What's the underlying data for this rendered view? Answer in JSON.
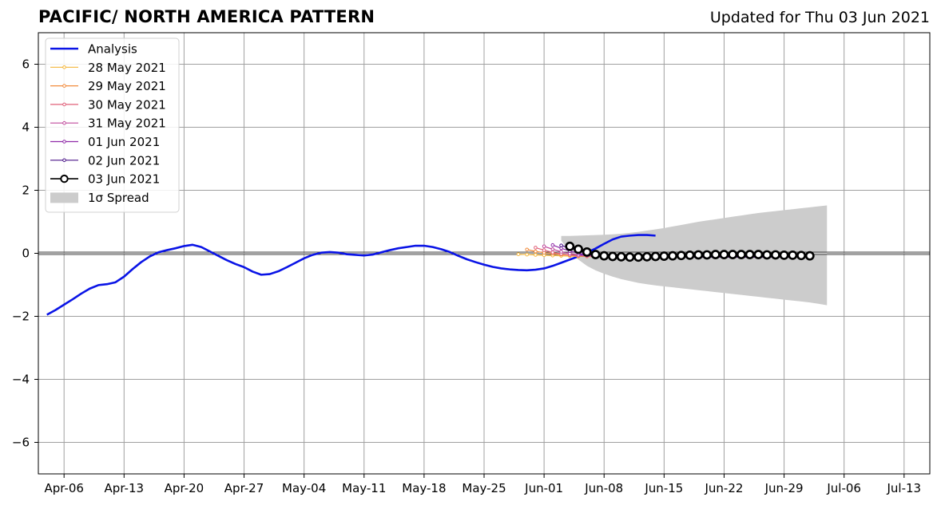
{
  "title": "PACIFIC/ NORTH AMERICA PATTERN",
  "subtitle": "Updated for Thu 03 Jun 2021",
  "colors": {
    "analysis": "#0a14e6",
    "spread": "#cccccc",
    "ensemble": [
      "#f5b63a",
      "#f28b3c",
      "#e0607a",
      "#c04a9c",
      "#8f2aa8",
      "#4a1488",
      "#000000"
    ]
  },
  "chart_data": {
    "type": "line",
    "title": "PACIFIC/ NORTH AMERICA PATTERN",
    "xlabel": "",
    "ylabel": "",
    "ylim": [
      -7,
      7
    ],
    "xlim": [
      "2021-04-03",
      "2021-07-16"
    ],
    "grid": true,
    "legend_position": "top-left",
    "yticks": [
      -6,
      -4,
      -2,
      0,
      2,
      4,
      6
    ],
    "ytick_labels": [
      "−6",
      "−4",
      "−2",
      "0",
      "2",
      "4",
      "6"
    ],
    "xticks": [
      "2021-04-06",
      "2021-04-13",
      "2021-04-20",
      "2021-04-27",
      "2021-05-04",
      "2021-05-11",
      "2021-05-18",
      "2021-05-25",
      "2021-06-01",
      "2021-06-08",
      "2021-06-15",
      "2021-06-22",
      "2021-06-29",
      "2021-07-06",
      "2021-07-13"
    ],
    "xtick_labels": [
      "Apr-06",
      "Apr-13",
      "Apr-20",
      "Apr-27",
      "May-04",
      "May-11",
      "May-18",
      "May-25",
      "Jun-01",
      "Jun-08",
      "Jun-15",
      "Jun-22",
      "Jun-29",
      "Jul-06",
      "Jul-13"
    ],
    "legend": [
      "Analysis",
      "28 May 2021",
      "29 May 2021",
      "30 May 2021",
      "31 May 2021",
      "01 Jun 2021",
      "02 Jun 2021",
      "03 Jun 2021",
      "1σ Spread"
    ],
    "analysis": {
      "name": "Analysis",
      "start": "2021-04-04",
      "values": [
        -1.95,
        -1.8,
        -1.63,
        -1.46,
        -1.28,
        -1.12,
        -1.01,
        -0.98,
        -0.92,
        -0.74,
        -0.5,
        -0.28,
        -0.1,
        0.03,
        0.1,
        0.16,
        0.23,
        0.27,
        0.2,
        0.06,
        -0.08,
        -0.22,
        -0.34,
        -0.44,
        -0.58,
        -0.68,
        -0.66,
        -0.57,
        -0.44,
        -0.3,
        -0.16,
        -0.05,
        0.02,
        0.04,
        0.02,
        -0.03,
        -0.05,
        -0.07,
        -0.04,
        0.03,
        0.1,
        0.16,
        0.2,
        0.24,
        0.24,
        0.2,
        0.13,
        0.04,
        -0.08,
        -0.19,
        -0.28,
        -0.36,
        -0.43,
        -0.48,
        -0.51,
        -0.53,
        -0.54,
        -0.52,
        -0.48,
        -0.4,
        -0.3,
        -0.2,
        -0.1,
        0.02,
        0.15,
        0.3,
        0.44,
        0.53,
        0.56,
        0.58,
        0.58,
        0.56
      ]
    },
    "forecasts": [
      {
        "name": "28 May 2021",
        "start": "2021-05-29",
        "values": [
          -0.03,
          -0.04,
          -0.05,
          -0.06,
          -0.07,
          -0.08,
          -0.09,
          -0.1,
          -0.1,
          -0.11,
          -0.11,
          -0.11,
          -0.12,
          -0.12,
          -0.12,
          -0.12,
          -0.12,
          -0.12,
          -0.12,
          -0.12,
          -0.12,
          -0.12,
          -0.12,
          -0.12,
          -0.12,
          -0.12,
          -0.12,
          -0.12,
          -0.12
        ]
      },
      {
        "name": "29 May 2021",
        "start": "2021-05-30",
        "values": [
          0.12,
          0.06,
          0.02,
          -0.01,
          -0.04,
          -0.06,
          -0.08,
          -0.09,
          -0.1,
          -0.11,
          -0.11,
          -0.11,
          -0.12,
          -0.12,
          -0.12,
          -0.12,
          -0.12,
          -0.12,
          -0.12,
          -0.12,
          -0.12,
          -0.12,
          -0.12,
          -0.12,
          -0.12,
          -0.12,
          -0.12,
          -0.12,
          -0.12
        ]
      },
      {
        "name": "30 May 2021",
        "start": "2021-05-31",
        "values": [
          0.18,
          0.1,
          0.03,
          -0.02,
          -0.05,
          -0.08,
          -0.09,
          -0.1,
          -0.11,
          -0.11,
          -0.12,
          -0.12,
          -0.12,
          -0.12,
          -0.12,
          -0.12,
          -0.12,
          -0.12,
          -0.12,
          -0.12,
          -0.12,
          -0.12,
          -0.12,
          -0.12,
          -0.12,
          -0.12,
          -0.12,
          -0.12,
          -0.12
        ]
      },
      {
        "name": "31 May 2021",
        "start": "2021-06-01",
        "values": [
          0.22,
          0.13,
          0.05,
          -0.01,
          -0.05,
          -0.08,
          -0.1,
          -0.11,
          -0.11,
          -0.12,
          -0.12,
          -0.12,
          -0.12,
          -0.12,
          -0.12,
          -0.12,
          -0.12,
          -0.12,
          -0.12,
          -0.12,
          -0.12,
          -0.12,
          -0.12,
          -0.12,
          -0.12,
          -0.12,
          -0.12,
          -0.12,
          -0.12
        ]
      },
      {
        "name": "01 Jun 2021",
        "start": "2021-06-02",
        "values": [
          0.26,
          0.16,
          0.07,
          0.0,
          -0.05,
          -0.08,
          -0.1,
          -0.11,
          -0.12,
          -0.12,
          -0.12,
          -0.12,
          -0.12,
          -0.12,
          -0.12,
          -0.12,
          -0.12,
          -0.12,
          -0.12,
          -0.12,
          -0.12,
          -0.12,
          -0.12,
          -0.12,
          -0.12,
          -0.12,
          -0.12,
          -0.12,
          -0.12
        ]
      },
      {
        "name": "02 Jun 2021",
        "start": "2021-06-03",
        "values": [
          0.25,
          0.17,
          0.08,
          0.01,
          -0.04,
          -0.08,
          -0.1,
          -0.11,
          -0.12,
          -0.12,
          -0.12,
          -0.12,
          -0.12,
          -0.12,
          -0.12,
          -0.12,
          -0.12,
          -0.12,
          -0.12,
          -0.12,
          -0.12,
          -0.12,
          -0.12,
          -0.12,
          -0.12,
          -0.12,
          -0.12,
          -0.12,
          -0.12
        ]
      },
      {
        "name": "03 Jun 2021",
        "start": "2021-06-04",
        "values": [
          0.22,
          0.13,
          0.04,
          -0.04,
          -0.08,
          -0.1,
          -0.11,
          -0.12,
          -0.12,
          -0.11,
          -0.1,
          -0.09,
          -0.08,
          -0.07,
          -0.06,
          -0.05,
          -0.05,
          -0.04,
          -0.04,
          -0.04,
          -0.04,
          -0.04,
          -0.04,
          -0.05,
          -0.05,
          -0.06,
          -0.06,
          -0.07,
          -0.08
        ]
      }
    ],
    "spread": {
      "name": "1σ Spread",
      "start": "2021-06-03",
      "upper": [
        0.55,
        0.55,
        0.56,
        0.57,
        0.58,
        0.59,
        0.6,
        0.62,
        0.65,
        0.68,
        0.72,
        0.76,
        0.8,
        0.85,
        0.9,
        0.95,
        1.0,
        1.04,
        1.08,
        1.12,
        1.16,
        1.2,
        1.24,
        1.28,
        1.31,
        1.34,
        1.37,
        1.4,
        1.43,
        1.46,
        1.49,
        1.52
      ],
      "lower": [
        0.4,
        0.05,
        -0.2,
        -0.4,
        -0.54,
        -0.65,
        -0.74,
        -0.82,
        -0.88,
        -0.94,
        -0.98,
        -1.02,
        -1.05,
        -1.08,
        -1.11,
        -1.14,
        -1.17,
        -1.2,
        -1.23,
        -1.26,
        -1.29,
        -1.32,
        -1.35,
        -1.38,
        -1.41,
        -1.44,
        -1.47,
        -1.5,
        -1.53,
        -1.56,
        -1.6,
        -1.65
      ]
    }
  }
}
